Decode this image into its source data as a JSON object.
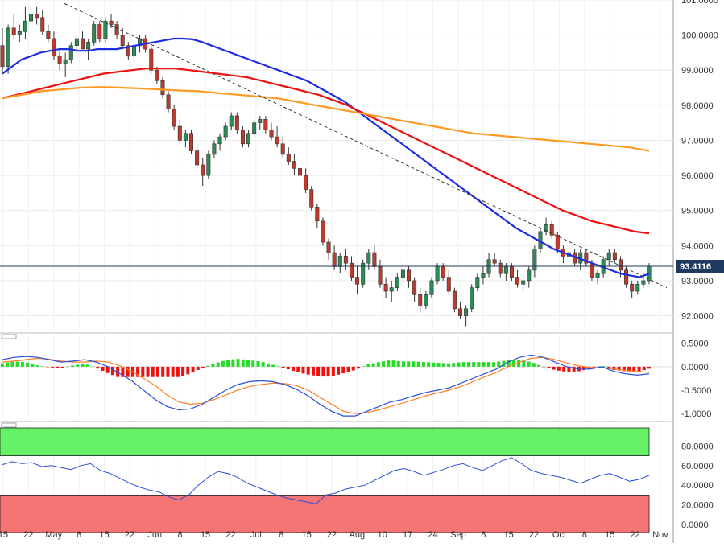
{
  "chart_data": [
    {
      "type": "candlestick",
      "title": "",
      "x": [
        "15",
        "22",
        "May",
        "8",
        "15",
        "22",
        "Jun",
        "8",
        "15",
        "22",
        "Jul",
        "8",
        "15",
        "22",
        "Aug",
        "10",
        "17",
        "24",
        "Sep",
        "8",
        "15",
        "22",
        "Oct",
        "8",
        "15",
        "22",
        "Nov"
      ],
      "y_ticks": [
        "92.0000",
        "93.0000",
        "94.0000",
        "95.0000",
        "96.0000",
        "97.0000",
        "98.0000",
        "99.0000",
        "100.0000",
        "101.0000"
      ],
      "ylim": [
        91.6,
        101.0
      ],
      "last_price": "93.4116",
      "ohlc": [
        [
          99.7,
          100.2,
          98.9,
          99.1
        ],
        [
          99.1,
          100.3,
          98.9,
          100.2
        ],
        [
          100.2,
          100.6,
          99.9,
          100.0
        ],
        [
          100.0,
          100.3,
          99.8,
          100.1
        ],
        [
          100.1,
          100.8,
          99.9,
          100.4
        ],
        [
          100.4,
          100.8,
          100.2,
          100.6
        ],
        [
          100.6,
          100.8,
          100.3,
          100.5
        ],
        [
          100.5,
          100.7,
          100.0,
          100.1
        ],
        [
          100.1,
          100.3,
          99.8,
          99.9
        ],
        [
          99.9,
          100.1,
          99.3,
          99.4
        ],
        [
          99.4,
          99.6,
          99.0,
          99.2
        ],
        [
          99.2,
          99.5,
          98.8,
          99.3
        ],
        [
          99.3,
          99.8,
          99.2,
          99.7
        ],
        [
          99.7,
          100.0,
          99.5,
          99.9
        ],
        [
          99.9,
          100.1,
          99.6,
          99.6
        ],
        [
          99.6,
          99.9,
          99.3,
          99.8
        ],
        [
          99.8,
          100.4,
          99.7,
          100.3
        ],
        [
          100.3,
          100.4,
          99.8,
          99.9
        ],
        [
          99.9,
          100.5,
          99.8,
          100.4
        ],
        [
          100.4,
          100.6,
          100.2,
          100.3
        ],
        [
          100.3,
          100.4,
          99.9,
          100.0
        ],
        [
          100.0,
          100.2,
          99.6,
          99.7
        ],
        [
          99.7,
          99.8,
          99.3,
          99.4
        ],
        [
          99.4,
          99.8,
          99.2,
          99.7
        ],
        [
          99.7,
          100.0,
          99.5,
          99.9
        ],
        [
          99.9,
          100.0,
          99.5,
          99.6
        ],
        [
          99.6,
          99.7,
          98.9,
          99.0
        ],
        [
          99.0,
          99.1,
          98.6,
          98.7
        ],
        [
          98.7,
          98.8,
          98.2,
          98.3
        ],
        [
          98.3,
          98.4,
          97.8,
          97.9
        ],
        [
          97.9,
          98.0,
          97.3,
          97.4
        ],
        [
          97.4,
          97.6,
          96.9,
          97.0
        ],
        [
          97.0,
          97.3,
          96.8,
          97.2
        ],
        [
          97.2,
          97.3,
          96.6,
          96.7
        ],
        [
          96.7,
          96.9,
          96.2,
          96.3
        ],
        [
          96.3,
          96.5,
          95.7,
          96.0
        ],
        [
          96.0,
          96.7,
          95.9,
          96.6
        ],
        [
          96.6,
          97.0,
          96.5,
          96.9
        ],
        [
          96.9,
          97.2,
          96.7,
          97.1
        ],
        [
          97.1,
          97.5,
          97.0,
          97.4
        ],
        [
          97.4,
          97.8,
          97.3,
          97.7
        ],
        [
          97.7,
          97.8,
          97.2,
          97.3
        ],
        [
          97.3,
          97.4,
          96.8,
          96.9
        ],
        [
          96.9,
          97.3,
          96.8,
          97.2
        ],
        [
          97.2,
          97.6,
          97.1,
          97.5
        ],
        [
          97.5,
          97.7,
          97.3,
          97.6
        ],
        [
          97.6,
          97.7,
          97.2,
          97.3
        ],
        [
          97.3,
          97.5,
          97.0,
          97.1
        ],
        [
          97.1,
          97.4,
          96.8,
          96.9
        ],
        [
          96.9,
          97.1,
          96.5,
          96.6
        ],
        [
          96.6,
          96.8,
          96.3,
          96.4
        ],
        [
          96.4,
          96.6,
          96.0,
          96.2
        ],
        [
          96.2,
          96.4,
          95.8,
          96.0
        ],
        [
          96.0,
          96.2,
          95.5,
          95.6
        ],
        [
          95.6,
          95.7,
          95.0,
          95.1
        ],
        [
          95.1,
          95.2,
          94.5,
          94.7
        ],
        [
          94.7,
          94.8,
          94.0,
          94.1
        ],
        [
          94.1,
          94.2,
          93.6,
          93.8
        ],
        [
          93.8,
          94.0,
          93.3,
          93.4
        ],
        [
          93.4,
          93.8,
          93.2,
          93.7
        ],
        [
          93.7,
          93.9,
          93.3,
          93.5
        ],
        [
          93.5,
          93.7,
          93.0,
          93.1
        ],
        [
          93.1,
          93.4,
          92.6,
          92.9
        ],
        [
          92.9,
          93.6,
          92.8,
          93.5
        ],
        [
          93.5,
          93.9,
          93.3,
          93.8
        ],
        [
          93.8,
          94.0,
          93.3,
          93.4
        ],
        [
          93.4,
          93.6,
          92.8,
          92.9
        ],
        [
          92.9,
          93.1,
          92.5,
          92.7
        ],
        [
          92.7,
          93.0,
          92.4,
          92.8
        ],
        [
          92.8,
          93.2,
          92.7,
          93.1
        ],
        [
          93.1,
          93.5,
          92.9,
          93.3
        ],
        [
          93.3,
          93.4,
          92.8,
          93.0
        ],
        [
          93.0,
          93.1,
          92.4,
          92.6
        ],
        [
          92.6,
          92.8,
          92.1,
          92.3
        ],
        [
          92.3,
          92.7,
          92.2,
          92.6
        ],
        [
          92.6,
          93.1,
          92.5,
          93.0
        ],
        [
          93.0,
          93.5,
          92.9,
          93.4
        ],
        [
          93.4,
          93.5,
          93.0,
          93.1
        ],
        [
          93.1,
          93.3,
          92.6,
          92.7
        ],
        [
          92.7,
          92.8,
          92.1,
          92.2
        ],
        [
          92.2,
          92.4,
          91.9,
          92.0
        ],
        [
          92.0,
          92.3,
          91.7,
          92.2
        ],
        [
          92.2,
          92.9,
          92.1,
          92.8
        ],
        [
          92.8,
          93.2,
          92.7,
          93.1
        ],
        [
          93.1,
          93.4,
          92.9,
          93.2
        ],
        [
          93.2,
          93.8,
          93.1,
          93.6
        ],
        [
          93.6,
          93.8,
          93.4,
          93.5
        ],
        [
          93.5,
          93.6,
          93.1,
          93.2
        ],
        [
          93.2,
          93.5,
          93.0,
          93.4
        ],
        [
          93.4,
          93.5,
          93.0,
          93.1
        ],
        [
          93.1,
          93.3,
          92.8,
          92.9
        ],
        [
          92.9,
          93.1,
          92.7,
          93.0
        ],
        [
          93.0,
          93.4,
          92.8,
          93.3
        ],
        [
          93.3,
          94.0,
          93.1,
          93.9
        ],
        [
          93.9,
          94.5,
          93.8,
          94.4
        ],
        [
          94.4,
          94.8,
          94.3,
          94.6
        ],
        [
          94.6,
          94.7,
          94.2,
          94.3
        ],
        [
          94.3,
          94.4,
          93.8,
          93.9
        ],
        [
          93.9,
          94.0,
          93.5,
          93.7
        ],
        [
          93.7,
          93.9,
          93.5,
          93.8
        ],
        [
          93.8,
          93.9,
          93.4,
          93.5
        ],
        [
          93.5,
          93.9,
          93.3,
          93.8
        ],
        [
          93.8,
          93.9,
          93.4,
          93.5
        ],
        [
          93.5,
          93.6,
          93.0,
          93.1
        ],
        [
          93.1,
          93.3,
          92.9,
          93.2
        ],
        [
          93.2,
          93.7,
          93.1,
          93.6
        ],
        [
          93.6,
          93.9,
          93.4,
          93.8
        ],
        [
          93.8,
          93.9,
          93.5,
          93.6
        ],
        [
          93.6,
          93.7,
          93.1,
          93.3
        ],
        [
          93.3,
          93.4,
          92.8,
          92.9
        ],
        [
          92.9,
          93.0,
          92.5,
          92.7
        ],
        [
          92.7,
          93.0,
          92.6,
          92.9
        ],
        [
          92.9,
          93.2,
          92.8,
          93.0
        ],
        [
          93.0,
          93.5,
          92.9,
          93.41
        ]
      ],
      "overlays": [
        {
          "color": "#1f2de0",
          "values": [
            98.9,
            99.1,
            99.3,
            99.4,
            99.5,
            99.55,
            99.6,
            99.6,
            99.55,
            99.55,
            99.6,
            99.6,
            99.6,
            99.65,
            99.7,
            99.75,
            99.8,
            99.85,
            99.9,
            99.9,
            99.88,
            99.8,
            99.7,
            99.6,
            99.5,
            99.4,
            99.3,
            99.2,
            99.1,
            99.0,
            98.9,
            98.8,
            98.7,
            98.55,
            98.4,
            98.25,
            98.1,
            97.9,
            97.7,
            97.5,
            97.3,
            97.1,
            96.9,
            96.7,
            96.5,
            96.3,
            96.1,
            95.9,
            95.7,
            95.5,
            95.3,
            95.1,
            94.9,
            94.7,
            94.5,
            94.35,
            94.2,
            94.05,
            93.9,
            93.8,
            93.7,
            93.6,
            93.5,
            93.4,
            93.3,
            93.2,
            93.15,
            93.1,
            93.2
          ]
        },
        {
          "color": "#ee1111",
          "values": [
            98.2,
            98.3,
            98.4,
            98.5,
            98.6,
            98.7,
            98.8,
            98.9,
            98.95,
            99.0,
            99.05,
            99.05,
            99.05,
            99.0,
            98.95,
            98.9,
            98.85,
            98.8,
            98.7,
            98.6,
            98.5,
            98.4,
            98.3,
            98.15,
            98.0,
            97.8,
            97.6,
            97.4,
            97.2,
            97.0,
            96.8,
            96.6,
            96.4,
            96.2,
            96.0,
            95.8,
            95.6,
            95.4,
            95.2,
            95.0,
            94.85,
            94.7,
            94.6,
            94.5,
            94.4,
            94.35
          ]
        },
        {
          "color": "#ff9922",
          "values": [
            98.2,
            98.3,
            98.4,
            98.45,
            98.5,
            98.52,
            98.5,
            98.48,
            98.45,
            98.42,
            98.4,
            98.35,
            98.3,
            98.25,
            98.2,
            98.1,
            98.0,
            97.9,
            97.8,
            97.7,
            97.6,
            97.5,
            97.4,
            97.3,
            97.2,
            97.15,
            97.1,
            97.05,
            97.0,
            96.95,
            96.9,
            96.85,
            96.8,
            96.7
          ]
        }
      ],
      "trendline": [
        [
          100.9,
          0.0
        ],
        [
          92.8,
          1.0
        ]
      ]
    },
    {
      "type": "macd",
      "y_ticks": [
        "0.5000",
        "0.0000",
        "-0.5000",
        "-1.0000"
      ],
      "ylim": [
        -1.1,
        0.65
      ],
      "macd_line": [
        0.15,
        0.2,
        0.22,
        0.2,
        0.15,
        0.1,
        0.12,
        0.15,
        0.1,
        0.0,
        -0.15,
        -0.3,
        -0.5,
        -0.7,
        -0.85,
        -0.92,
        -0.9,
        -0.8,
        -0.65,
        -0.5,
        -0.38,
        -0.32,
        -0.3,
        -0.32,
        -0.38,
        -0.48,
        -0.62,
        -0.8,
        -0.95,
        -1.05,
        -1.05,
        -0.95,
        -0.85,
        -0.75,
        -0.7,
        -0.62,
        -0.55,
        -0.5,
        -0.45,
        -0.35,
        -0.25,
        -0.15,
        -0.05,
        0.1,
        0.2,
        0.25,
        0.2,
        0.1,
        0.0,
        -0.05,
        -0.05,
        0.0,
        -0.1,
        -0.15,
        -0.18,
        -0.15
      ],
      "signal_line": [
        0.1,
        0.12,
        0.15,
        0.18,
        0.16,
        0.12,
        0.1,
        0.1,
        0.12,
        0.1,
        0.02,
        -0.1,
        -0.25,
        -0.4,
        -0.6,
        -0.75,
        -0.8,
        -0.78,
        -0.7,
        -0.6,
        -0.5,
        -0.42,
        -0.38,
        -0.35,
        -0.36,
        -0.4,
        -0.5,
        -0.65,
        -0.8,
        -0.95,
        -1.0,
        -0.98,
        -0.92,
        -0.85,
        -0.78,
        -0.7,
        -0.62,
        -0.56,
        -0.5,
        -0.42,
        -0.32,
        -0.22,
        -0.12,
        0.0,
        0.1,
        0.18,
        0.2,
        0.15,
        0.08,
        0.02,
        -0.02,
        -0.02,
        -0.05,
        -0.08,
        -0.1,
        -0.12
      ],
      "histogram_range": {
        "min": -0.22,
        "max": 0.22
      }
    },
    {
      "type": "rsi",
      "y_ticks": [
        "80.0000",
        "60.0000",
        "40.0000",
        "20.0000",
        "0.0000"
      ],
      "ylim": [
        0,
        100
      ],
      "overbought": 70,
      "oversold": 30,
      "rsi": [
        61,
        64,
        62,
        63,
        59,
        60,
        58,
        56,
        60,
        62,
        55,
        52,
        47,
        42,
        38,
        35,
        33,
        28,
        25,
        30,
        40,
        48,
        54,
        52,
        48,
        42,
        38,
        34,
        30,
        27,
        25,
        23,
        21,
        30,
        32,
        36,
        38,
        40,
        45,
        50,
        55,
        57,
        54,
        50,
        53,
        56,
        60,
        62,
        58,
        55,
        60,
        65,
        68,
        62,
        55,
        52,
        50,
        48,
        45,
        42,
        46,
        50,
        52,
        48,
        44,
        46,
        50
      ]
    }
  ]
}
